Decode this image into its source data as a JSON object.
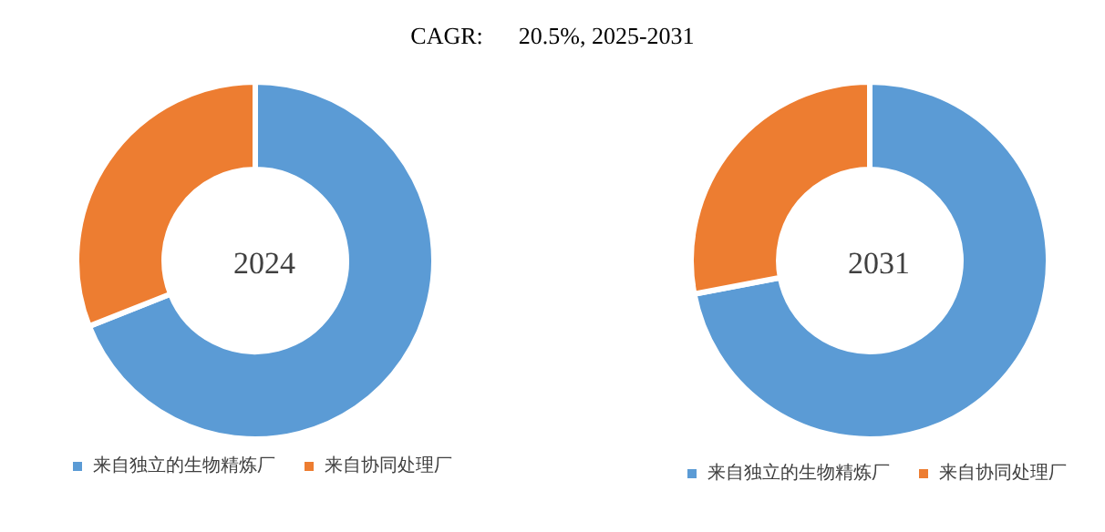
{
  "chart_data": [
    {
      "type": "donut",
      "title": "2024",
      "annotations": [
        "CAGR:      20.5%, 2025-2031"
      ],
      "categories": [
        "来自独立的生物精炼厂",
        "来自协同处理厂"
      ],
      "values": [
        69,
        31
      ],
      "colors": [
        "#5b9bd5",
        "#ed7d31"
      ],
      "legend": "bottom"
    },
    {
      "type": "donut",
      "title": "2031",
      "categories": [
        "来自独立的生物精炼厂",
        "来自协同处理厂"
      ],
      "values": [
        72,
        28
      ],
      "colors": [
        "#5b9bd5",
        "#ed7d31"
      ],
      "legend": "bottom"
    }
  ]
}
